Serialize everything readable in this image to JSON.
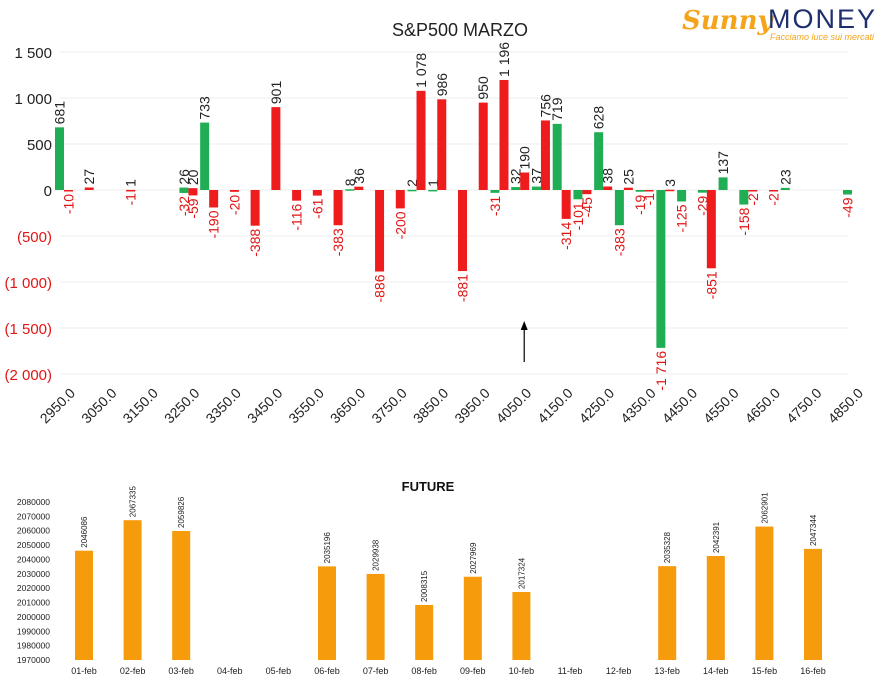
{
  "logo": {
    "brand_script": "Sunny",
    "brand_word": "MONEY",
    "tagline": "Facciamo luce sui mercati"
  },
  "chart_data": [
    {
      "type": "bar",
      "title": "S&P500 MARZO",
      "xlabel": "",
      "ylabel": "",
      "ylim": [
        -2000,
        1500
      ],
      "y_ticks": [
        "1 500",
        "1 000",
        "500",
        "0",
        "(500)",
        "(1 000)",
        "(1 500)",
        "(2 000)"
      ],
      "x_ticks": [
        "2950.0",
        "3050.0",
        "3150.0",
        "3250.0",
        "3350.0",
        "3450.0",
        "3550.0",
        "3650.0",
        "3750.0",
        "3850.0",
        "3950.0",
        "4050.0",
        "4150.0",
        "4250.0",
        "4350.0",
        "4450.0",
        "4550.0",
        "4650.0",
        "4750.0",
        "4850.0"
      ],
      "grid": true,
      "colors": {
        "green": "#1fae54",
        "red": "#ee1c1c",
        "neg_label": "#e01515"
      },
      "series": [
        {
          "color": "green",
          "bars": [
            {
              "x": 2950,
              "value": 681,
              "label": "681"
            },
            {
              "x": 3250,
              "value": 26,
              "label": "26"
            },
            {
              "x": 3250,
              "value": -32,
              "label": "-32"
            },
            {
              "x": 3300,
              "value": 733,
              "label": "733"
            },
            {
              "x": 3650,
              "value": 8,
              "label": "8"
            },
            {
              "x": 3800,
              "value": 2,
              "label": "2"
            },
            {
              "x": 3850,
              "value": 1,
              "label": "1"
            },
            {
              "x": 4000,
              "value": -31,
              "label": "-31"
            },
            {
              "x": 4050,
              "value": 32,
              "label": "32"
            },
            {
              "x": 4100,
              "value": 37,
              "label": "37"
            },
            {
              "x": 4150,
              "value": 719,
              "label": "719"
            },
            {
              "x": 4200,
              "value": -101,
              "label": "-101"
            },
            {
              "x": 4250,
              "value": 628,
              "label": "628"
            },
            {
              "x": 4300,
              "value": -383,
              "label": "-383"
            },
            {
              "x": 4350,
              "value": -19,
              "label": "-19"
            },
            {
              "x": 4400,
              "value": -1716,
              "label": "-1 716"
            },
            {
              "x": 4450,
              "value": -125,
              "label": "-125"
            },
            {
              "x": 4500,
              "value": -29,
              "label": "-29"
            },
            {
              "x": 4550,
              "value": 137,
              "label": "137"
            },
            {
              "x": 4600,
              "value": -158,
              "label": "-158"
            },
            {
              "x": 4700,
              "value": 23,
              "label": "23"
            },
            {
              "x": 4850,
              "value": -49,
              "label": "-49"
            }
          ]
        },
        {
          "color": "red",
          "bars": [
            {
              "x": 2950,
              "value": -10,
              "label": "-10"
            },
            {
              "x": 3000,
              "value": 27,
              "label": "27"
            },
            {
              "x": 3100,
              "value": 1,
              "label": "1"
            },
            {
              "x": 3100,
              "value": -1,
              "label": "-1"
            },
            {
              "x": 3250,
              "value": 20,
              "label": "20"
            },
            {
              "x": 3250,
              "value": -59,
              "label": "-59"
            },
            {
              "x": 3300,
              "value": -190,
              "label": "-190"
            },
            {
              "x": 3350,
              "value": -20,
              "label": "-20"
            },
            {
              "x": 3400,
              "value": -388,
              "label": "-388"
            },
            {
              "x": 3450,
              "value": 901,
              "label": "901"
            },
            {
              "x": 3500,
              "value": -116,
              "label": "-116"
            },
            {
              "x": 3550,
              "value": -61,
              "label": "-61"
            },
            {
              "x": 3600,
              "value": -383,
              "label": "-383"
            },
            {
              "x": 3650,
              "value": 36,
              "label": "36"
            },
            {
              "x": 3700,
              "value": -886,
              "label": "-886"
            },
            {
              "x": 3750,
              "value": -200,
              "label": "-200"
            },
            {
              "x": 3800,
              "value": 1078,
              "label": "1 078"
            },
            {
              "x": 3850,
              "value": 986,
              "label": "986"
            },
            {
              "x": 3900,
              "value": -881,
              "label": "-881"
            },
            {
              "x": 3950,
              "value": 950,
              "label": "950"
            },
            {
              "x": 4000,
              "value": 1196,
              "label": "1 196"
            },
            {
              "x": 4050,
              "value": 190,
              "label": "190"
            },
            {
              "x": 4100,
              "value": 756,
              "label": "756"
            },
            {
              "x": 4150,
              "value": -314,
              "label": "-314"
            },
            {
              "x": 4200,
              "value": -45,
              "label": "-45"
            },
            {
              "x": 4250,
              "value": 38,
              "label": "38"
            },
            {
              "x": 4300,
              "value": 25,
              "label": "25"
            },
            {
              "x": 4350,
              "value": -1,
              "label": "-1"
            },
            {
              "x": 4400,
              "value": 3,
              "label": "3"
            },
            {
              "x": 4500,
              "value": -851,
              "label": "-851"
            },
            {
              "x": 4600,
              "value": -2,
              "label": "-2"
            },
            {
              "x": 4650,
              "value": -2,
              "label": "-2"
            }
          ]
        }
      ],
      "annotation": {
        "type": "arrow-up",
        "x": 4050
      }
    },
    {
      "type": "bar",
      "title": "FUTURE",
      "xlabel": "",
      "ylabel": "",
      "ylim": [
        1970000,
        2080000
      ],
      "y_ticks": [
        "2080000",
        "2070000",
        "2060000",
        "2050000",
        "2040000",
        "2030000",
        "2020000",
        "2010000",
        "2000000",
        "1990000",
        "1980000",
        "1970000"
      ],
      "categories": [
        "01-feb",
        "02-feb",
        "03-feb",
        "04-feb",
        "05-feb",
        "06-feb",
        "07-feb",
        "08-feb",
        "09-feb",
        "10-feb",
        "11-feb",
        "12-feb",
        "13-feb",
        "14-feb",
        "15-feb",
        "16-feb"
      ],
      "values": [
        2046086,
        2067335,
        2059826,
        null,
        null,
        2035196,
        2029938,
        2008315,
        2027969,
        2017324,
        null,
        null,
        2035328,
        2042391,
        2062901,
        2047344
      ],
      "labels": [
        "2046086",
        "2067335",
        "2059826",
        "",
        "",
        "2035196",
        "2029938",
        "2008315",
        "2027969",
        "2017324",
        "",
        "",
        "2035328",
        "2042391",
        "2062901",
        "2047344"
      ],
      "color": "#f59b0c",
      "grid": false
    }
  ]
}
